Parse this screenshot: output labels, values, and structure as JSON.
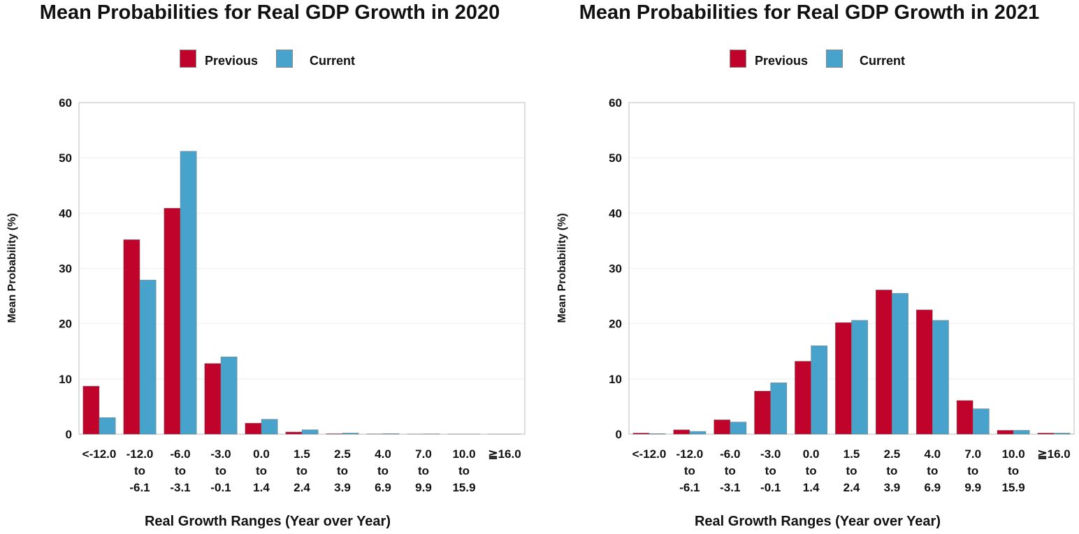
{
  "colors": {
    "previous": "#C0032A",
    "current": "#48A3CC",
    "axis": "#BBBBBB",
    "grid": "#EEEEEE"
  },
  "legend": {
    "previous": "Previous",
    "current": "Current"
  },
  "chart_data": [
    {
      "type": "bar",
      "title": "Mean Probabilities for Real GDP Growth in 2020",
      "xlabel": "Real Growth Ranges (Year over Year)",
      "ylabel": "Mean Probability (%)",
      "ylim": [
        0,
        60
      ],
      "yticks": [
        0,
        10,
        20,
        30,
        40,
        50,
        60
      ],
      "grid": true,
      "legend_position": "top-center",
      "categories": [
        [
          "<-12.0"
        ],
        [
          "-12.0",
          "to",
          "-6.1"
        ],
        [
          "-6.0",
          "to",
          "-3.1"
        ],
        [
          "-3.0",
          "to",
          "-0.1"
        ],
        [
          "0.0",
          "to",
          "1.4"
        ],
        [
          "1.5",
          "to",
          "2.4"
        ],
        [
          "2.5",
          "to",
          "3.9"
        ],
        [
          "4.0",
          "to",
          "6.9"
        ],
        [
          "7.0",
          "to",
          "9.9"
        ],
        [
          "10.0",
          "to",
          "15.9"
        ],
        [
          "≧16.0"
        ]
      ],
      "series": [
        {
          "name": "Previous",
          "values": [
            8.7,
            35.2,
            40.9,
            12.8,
            2.0,
            0.4,
            0.1,
            0.05,
            0.03,
            0.02,
            0.01
          ]
        },
        {
          "name": "Current",
          "values": [
            3.0,
            27.9,
            51.2,
            14.0,
            2.7,
            0.8,
            0.2,
            0.1,
            0.05,
            0.03,
            0.01
          ]
        }
      ]
    },
    {
      "type": "bar",
      "title": "Mean Probabilities for Real GDP Growth in 2021",
      "xlabel": "Real Growth Ranges (Year over Year)",
      "ylabel": "Mean Probability (%)",
      "ylim": [
        0,
        60
      ],
      "yticks": [
        0,
        10,
        20,
        30,
        40,
        50,
        60
      ],
      "grid": true,
      "legend_position": "top-center",
      "categories": [
        [
          "<-12.0"
        ],
        [
          "-12.0",
          "to",
          "-6.1"
        ],
        [
          "-6.0",
          "to",
          "-3.1"
        ],
        [
          "-3.0",
          "to",
          "-0.1"
        ],
        [
          "0.0",
          "to",
          "1.4"
        ],
        [
          "1.5",
          "to",
          "2.4"
        ],
        [
          "2.5",
          "to",
          "3.9"
        ],
        [
          "4.0",
          "to",
          "6.9"
        ],
        [
          "7.0",
          "to",
          "9.9"
        ],
        [
          "10.0",
          "to",
          "15.9"
        ],
        [
          "≧16.0"
        ]
      ],
      "series": [
        {
          "name": "Previous",
          "values": [
            0.2,
            0.8,
            2.6,
            7.8,
            13.2,
            20.2,
            26.1,
            22.5,
            6.1,
            0.7,
            0.2
          ]
        },
        {
          "name": "Current",
          "values": [
            0.1,
            0.5,
            2.2,
            9.3,
            16.0,
            20.6,
            25.5,
            20.6,
            4.6,
            0.7,
            0.2
          ]
        }
      ]
    }
  ]
}
